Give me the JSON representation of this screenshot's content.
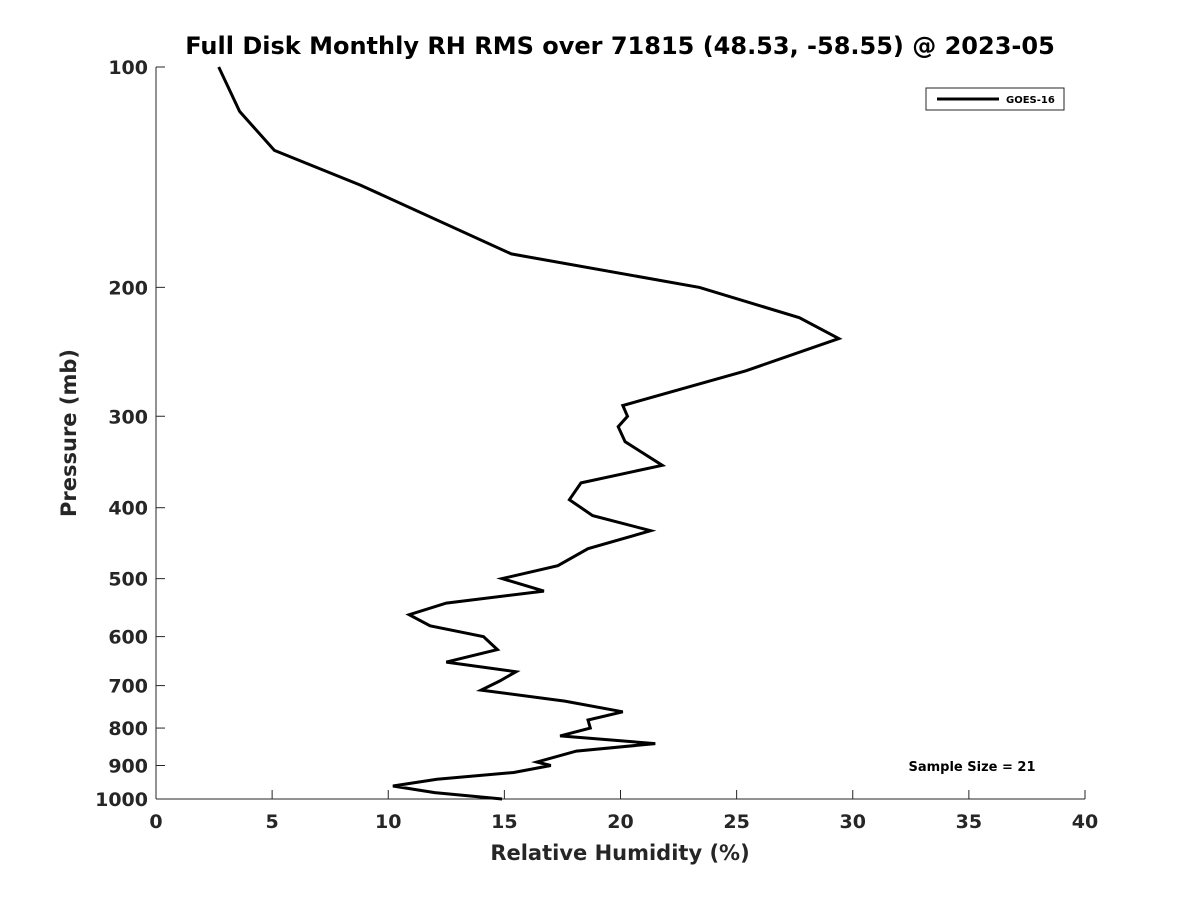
{
  "chart_data": {
    "type": "line",
    "title": "Full Disk Monthly RH RMS over 71815 (48.53, -58.55) @ 2023-05",
    "xlabel": "Relative Humidity (%)",
    "ylabel": "Pressure (mb)",
    "xlim": [
      0,
      40
    ],
    "ylim": [
      1000,
      100
    ],
    "y_scale": "log",
    "x_ticks": [
      0,
      5,
      10,
      15,
      20,
      25,
      30,
      35,
      40
    ],
    "x_tick_labels": [
      "0",
      "5",
      "10",
      "15",
      "20",
      "25",
      "30",
      "35",
      "40"
    ],
    "y_ticks": [
      100,
      200,
      300,
      400,
      500,
      600,
      700,
      800,
      900,
      1000
    ],
    "y_tick_labels": [
      "100",
      "200",
      "300",
      "400",
      "500",
      "600",
      "700",
      "800",
      "900",
      "1000"
    ],
    "grid": false,
    "legend_position": "top-right",
    "annotation": "Sample Size = 21",
    "line_color": "#000000",
    "series": [
      {
        "name": "GOES-16",
        "x": [
          2.7,
          3.6,
          5.1,
          8.8,
          15.3,
          23.4,
          27.7,
          29.4,
          25.4,
          20.1,
          20.3,
          19.9,
          20.2,
          21.8,
          18.3,
          17.8,
          18.8,
          21.3,
          18.6,
          17.3,
          14.9,
          16.7,
          12.5,
          10.9,
          11.8,
          14.1,
          14.7,
          12.5,
          15.5,
          14.8,
          14.0,
          17.6,
          20.1,
          18.6,
          18.7,
          17.4,
          21.5,
          18.1,
          16.4,
          17.0,
          15.4,
          12.1,
          10.2,
          12.0,
          14.9
        ],
        "y": [
          100,
          115,
          130,
          145,
          180,
          200,
          220,
          235,
          260,
          290,
          300,
          310,
          325,
          350,
          370,
          390,
          410,
          430,
          455,
          480,
          500,
          520,
          540,
          560,
          580,
          600,
          625,
          650,
          670,
          690,
          710,
          735,
          760,
          780,
          800,
          820,
          840,
          860,
          890,
          900,
          920,
          940,
          960,
          980,
          1000
        ]
      }
    ]
  }
}
